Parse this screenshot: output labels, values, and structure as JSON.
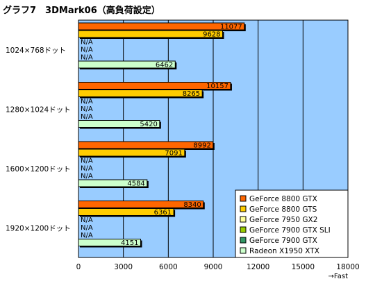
{
  "chart_data": {
    "type": "bar",
    "orientation": "horizontal",
    "title": "グラフ7　3DMark06（高負荷設定）",
    "xlabel": "",
    "ylabel": "",
    "x_note": "→Fast",
    "xlim": [
      0,
      18000
    ],
    "xticks": [
      0,
      3000,
      6000,
      9000,
      12000,
      15000,
      18000
    ],
    "grid": true,
    "legend_position": "bottom-right",
    "plot_background": "#99ccff",
    "missing_label": "N/A",
    "categories": [
      "1024×768ドット",
      "1280×1024ドット",
      "1600×1200ドット",
      "1920×1200ドット"
    ],
    "series": [
      {
        "name": "GeForce 8800 GTX",
        "color": "#ff6600",
        "values": [
          11077,
          10157,
          8992,
          8340
        ]
      },
      {
        "name": "GeForce 8800 GTS",
        "color": "#ffcc00",
        "values": [
          9628,
          8265,
          7091,
          6361
        ]
      },
      {
        "name": "GeForce 7950 GX2",
        "color": "#ffff99",
        "values": [
          null,
          null,
          null,
          null
        ]
      },
      {
        "name": "GeForce 7900 GTX SLI",
        "color": "#99cc00",
        "values": [
          null,
          null,
          null,
          null
        ]
      },
      {
        "name": "GeForce 7900 GTX",
        "color": "#339966",
        "values": [
          null,
          null,
          null,
          null
        ]
      },
      {
        "name": "Radeon X1950 XTX",
        "color": "#ccffcc",
        "values": [
          6462,
          5420,
          4584,
          4151
        ]
      }
    ]
  }
}
